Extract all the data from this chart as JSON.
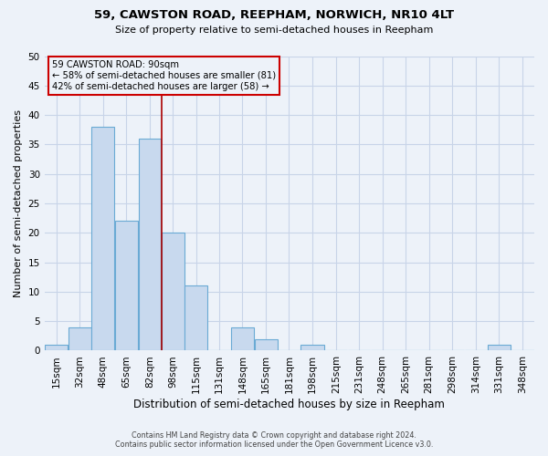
{
  "title": "59, CAWSTON ROAD, REEPHAM, NORWICH, NR10 4LT",
  "subtitle": "Size of property relative to semi-detached houses in Reepham",
  "xlabel": "Distribution of semi-detached houses by size in Reepham",
  "ylabel": "Number of semi-detached properties",
  "bin_labels": [
    "15sqm",
    "32sqm",
    "48sqm",
    "65sqm",
    "82sqm",
    "98sqm",
    "115sqm",
    "131sqm",
    "148sqm",
    "165sqm",
    "181sqm",
    "198sqm",
    "215sqm",
    "231sqm",
    "248sqm",
    "265sqm",
    "281sqm",
    "298sqm",
    "314sqm",
    "331sqm",
    "348sqm"
  ],
  "bin_edges": [
    6.5,
    23.5,
    40.0,
    56.5,
    73.5,
    90.0,
    106.5,
    123.0,
    139.5,
    156.5,
    173.0,
    189.5,
    206.5,
    223.0,
    239.5,
    256.5,
    273.0,
    289.5,
    306.5,
    323.0,
    339.5,
    356.5
  ],
  "counts": [
    1,
    4,
    38,
    22,
    36,
    20,
    11,
    0,
    4,
    2,
    0,
    1,
    0,
    0,
    0,
    0,
    0,
    0,
    0,
    1,
    0
  ],
  "bar_color": "#c8d9ee",
  "bar_edge_color": "#6aaad4",
  "property_value": 90,
  "vline_color": "#aa0000",
  "annotation_title": "59 CAWSTON ROAD: 90sqm",
  "annotation_line1": "← 58% of semi-detached houses are smaller (81)",
  "annotation_line2": "42% of semi-detached houses are larger (58) →",
  "annotation_box_edge_color": "#cc0000",
  "ylim": [
    0,
    50
  ],
  "yticks": [
    0,
    5,
    10,
    15,
    20,
    25,
    30,
    35,
    40,
    45,
    50
  ],
  "grid_color": "#c8d4e8",
  "background_color": "#edf2f9",
  "footer_line1": "Contains HM Land Registry data © Crown copyright and database right 2024.",
  "footer_line2": "Contains public sector information licensed under the Open Government Licence v3.0."
}
